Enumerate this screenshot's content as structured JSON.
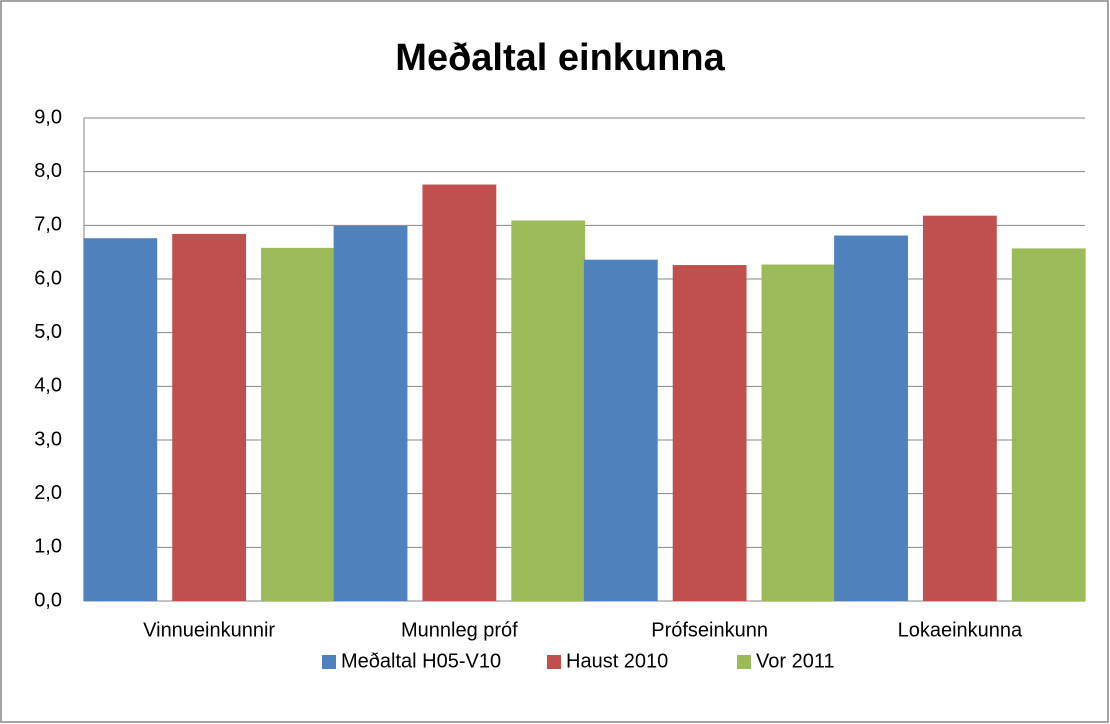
{
  "chart_data": {
    "type": "bar",
    "title": "Meðaltal einkunna",
    "categories": [
      "Vinnueinkunnir",
      "Munnleg próf",
      "Prófseinkunn",
      "Lokaeinkunna"
    ],
    "series": [
      {
        "name": "Meðaltal H05-V10",
        "color": "#4f81bd",
        "values": [
          6.76,
          6.99,
          6.36,
          6.81
        ]
      },
      {
        "name": "Haust 2010",
        "color": "#c0504d",
        "values": [
          6.84,
          7.76,
          6.26,
          7.18
        ]
      },
      {
        "name": "Vor 2011",
        "color": "#9bbb59",
        "values": [
          6.58,
          7.09,
          6.27,
          6.57
        ]
      }
    ],
    "ylim": [
      0,
      9
    ],
    "yticks": [
      {
        "value": 0,
        "label": "0,0"
      },
      {
        "value": 1,
        "label": "1,0"
      },
      {
        "value": 2,
        "label": "2,0"
      },
      {
        "value": 3,
        "label": "3,0"
      },
      {
        "value": 4,
        "label": "4,0"
      },
      {
        "value": 5,
        "label": "5,0"
      },
      {
        "value": 6,
        "label": "6,0"
      },
      {
        "value": 7,
        "label": "7,0"
      },
      {
        "value": 8,
        "label": "8,0"
      },
      {
        "value": 9,
        "label": "9,0"
      }
    ],
    "grid": true,
    "legend": "bottom"
  }
}
